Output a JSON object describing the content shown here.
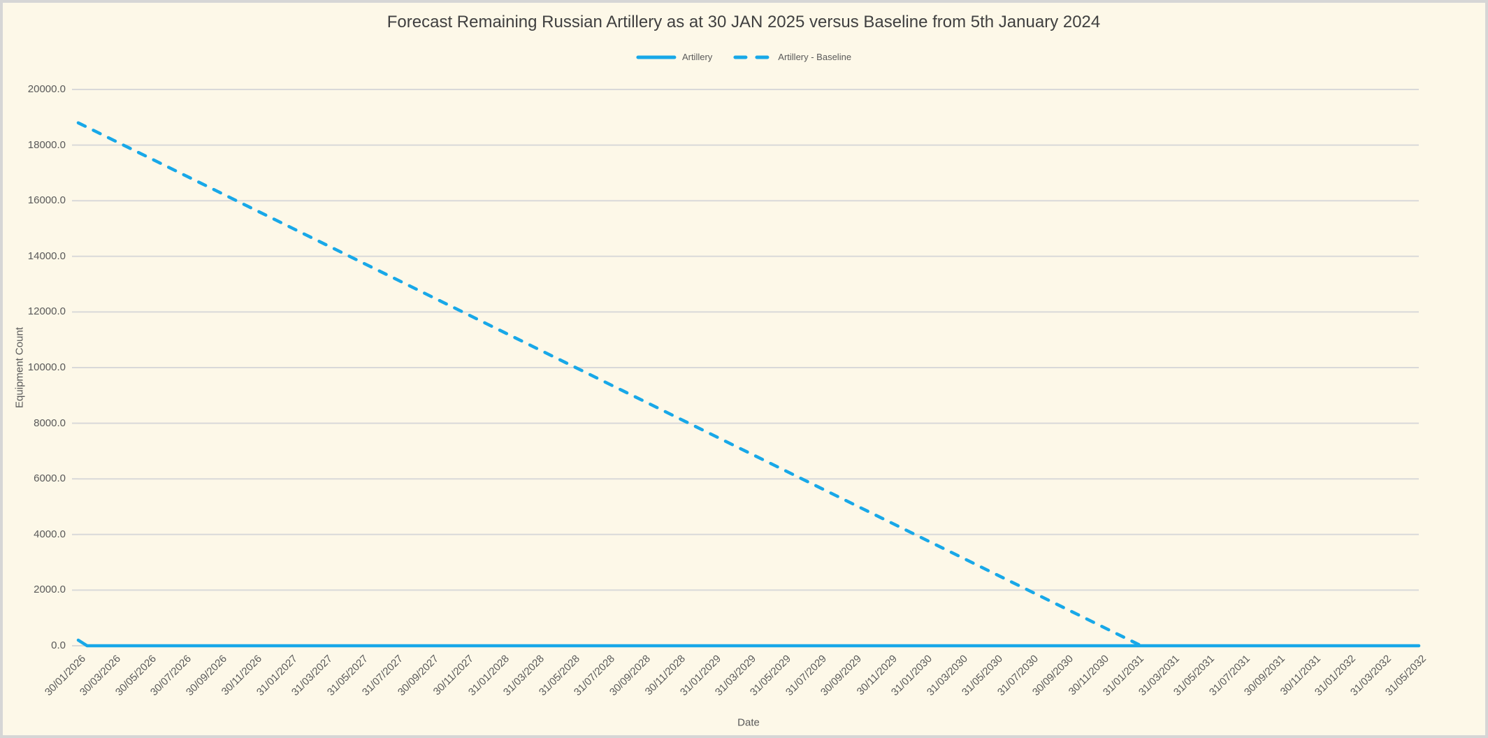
{
  "window": {
    "background_color": "#fdf8e8",
    "frame_color": "#d6d6d6"
  },
  "chart": {
    "title": "Forecast Remaining Russian Artillery as at 30 JAN 2025 versus Baseline from 5th January 2024",
    "x_axis_title": "Date",
    "y_axis_title": "Equipment Count",
    "legend": {
      "artillery_label": "Artillery",
      "baseline_label": "Artillery - Baseline"
    }
  },
  "chart_data": {
    "type": "line",
    "title": "Forecast Remaining Russian Artillery as at 30 JAN 2025 versus Baseline from 5th January 2024",
    "xlabel": "Date",
    "ylabel": "Equipment Count",
    "ylim": [
      0,
      20000
    ],
    "y_tick_step": 2000,
    "y_tick_labels": [
      "20000.0",
      "18000.0",
      "16000.0",
      "14000.0",
      "12000.0",
      "10000.0",
      "8000.0",
      "6000.0",
      "4000.0",
      "2000.0",
      "0.0"
    ],
    "grid": "horizontal",
    "legend_position": "top",
    "colors": {
      "line": "#18a8e8",
      "gridline": "#d9d9d9",
      "tick_label": "#595959",
      "title": "#404040"
    },
    "categories": [
      "30/01/2026",
      "30/03/2026",
      "30/05/2026",
      "30/07/2026",
      "30/09/2026",
      "30/11/2026",
      "31/01/2027",
      "31/03/2027",
      "31/05/2027",
      "31/07/2027",
      "30/09/2027",
      "30/11/2027",
      "31/01/2028",
      "31/03/2028",
      "31/05/2028",
      "31/07/2028",
      "30/09/2028",
      "30/11/2028",
      "31/01/2029",
      "31/03/2029",
      "31/05/2029",
      "31/07/2029",
      "30/09/2029",
      "30/11/2029",
      "31/01/2030",
      "31/03/2030",
      "31/05/2030",
      "31/07/2030",
      "30/09/2030",
      "30/11/2030",
      "31/01/2031",
      "31/03/2031",
      "31/05/2031",
      "31/07/2031",
      "30/09/2031",
      "30/11/2031",
      "31/01/2032",
      "31/03/2032",
      "31/05/2032"
    ],
    "series": [
      {
        "name": "Artillery",
        "line_style": "solid",
        "color": "#18a8e8",
        "values": [
          200,
          0,
          0,
          0,
          0,
          0,
          0,
          0,
          0,
          0,
          0,
          0,
          0,
          0,
          0,
          0,
          0,
          0,
          0,
          0,
          0,
          0,
          0,
          0,
          0,
          0,
          0,
          0,
          0,
          0,
          0,
          0,
          0,
          0,
          0,
          0,
          0,
          0,
          0
        ],
        "points": [
          [
            0,
            200
          ],
          [
            0.25,
            0
          ],
          [
            38,
            0
          ]
        ]
      },
      {
        "name": "Artillery - Baseline",
        "line_style": "dashed",
        "color": "#18a8e8",
        "values": [
          18800,
          18176,
          17552,
          16928,
          16304,
          15680,
          15056,
          14432,
          13808,
          13184,
          12560,
          11936,
          11312,
          10688,
          10064,
          9440,
          8816,
          8192,
          7568,
          6944,
          6320,
          5696,
          5072,
          4448,
          3824,
          3200,
          2576,
          1952,
          1328,
          704,
          80,
          0,
          0,
          0,
          0,
          0,
          0,
          0,
          0
        ],
        "points": [
          [
            0,
            18800
          ],
          [
            30.13,
            0
          ]
        ]
      }
    ]
  }
}
